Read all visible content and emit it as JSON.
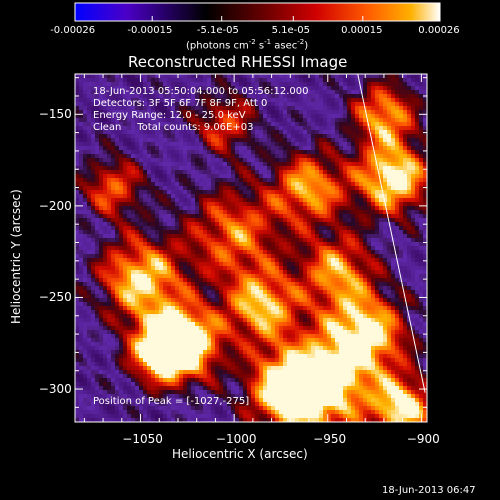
{
  "colorbar": {
    "tick_labels": [
      "-0.00026",
      "-0.00015",
      "-5.1e-05",
      "5.1e-05",
      "0.00015",
      "0.00026"
    ],
    "unit_label": "(photons cm",
    "unit_exp1": "-2",
    "unit_mid": " s",
    "unit_exp2": "-1",
    "unit_mid2": " asec",
    "unit_exp3": "-2",
    "unit_end": ")",
    "range": [
      -0.00026,
      0.00026
    ],
    "colormap": [
      "#0000ff",
      "#4b00c8",
      "#000000",
      "#6a0000",
      "#d00000",
      "#ff5a00",
      "#ffb000",
      "#ffffff"
    ]
  },
  "image": {
    "title": "Reconstructed RHESSI Image",
    "info_lines": [
      "18-Jun-2013 05:50:04.000 to 05:56:12.000",
      "Detectors: 3F 5F 6F 7F 8F 9F, Att 0",
      "Energy Range: 12.0 - 25.0 keV",
      "Clean     Total counts: 9.06E+03"
    ],
    "peak_label": "Position of Peak = [-1027,-275]",
    "peak_position": [
      -1027,
      -275
    ]
  },
  "axes": {
    "xlabel": "Heliocentric X (arcsec)",
    "ylabel": "Heliocentric Y (arcsec)",
    "xlim": [
      -1085,
      -897
    ],
    "ylim": [
      -318,
      -128
    ],
    "x_ticks": [
      {
        "value": -1050,
        "label": "−1050"
      },
      {
        "value": -1000,
        "label": "−1000"
      },
      {
        "value": -950,
        "label": "−950"
      },
      {
        "value": -900,
        "label": "−900"
      }
    ],
    "y_ticks": [
      {
        "value": -150,
        "label": "−150"
      },
      {
        "value": -200,
        "label": "−200"
      },
      {
        "value": -250,
        "label": "−250"
      },
      {
        "value": -300,
        "label": "−300"
      }
    ],
    "limb_line": [
      [
        -934,
        -128
      ],
      [
        -898,
        -302
      ]
    ]
  },
  "footer": {
    "timestamp": "18-Jun-2013 06:47"
  }
}
